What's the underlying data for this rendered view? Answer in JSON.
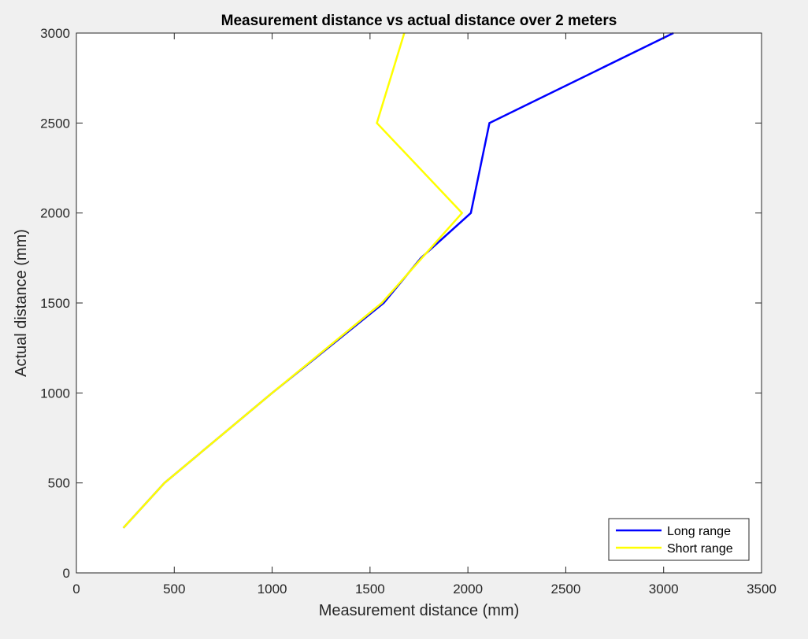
{
  "chart_data": {
    "type": "line",
    "title": "Measurement distance vs actual distance over 2 meters",
    "xlabel": "Measurement distance (mm)",
    "ylabel": "Actual distance (mm)",
    "xlim": [
      0,
      3500
    ],
    "ylim": [
      0,
      3000
    ],
    "xticks": [
      0,
      500,
      1000,
      1500,
      2000,
      2500,
      3000,
      3500
    ],
    "yticks": [
      0,
      500,
      1000,
      1500,
      2000,
      2500,
      3000
    ],
    "grid": false,
    "legend_position": "bottom-right",
    "series": [
      {
        "name": "Long range",
        "color": "#0000ff",
        "points": [
          [
            240,
            250
          ],
          [
            450,
            500
          ],
          [
            1000,
            1000
          ],
          [
            1570,
            1500
          ],
          [
            1760,
            1750
          ],
          [
            2015,
            2000
          ],
          [
            2110,
            2500
          ],
          [
            3050,
            3000
          ]
        ]
      },
      {
        "name": "Short range",
        "color": "#ffff00",
        "points": [
          [
            240,
            250
          ],
          [
            450,
            500
          ],
          [
            1000,
            1000
          ],
          [
            1560,
            1500
          ],
          [
            1970,
            2000
          ],
          [
            1535,
            2500
          ],
          [
            1675,
            3000
          ]
        ]
      }
    ]
  }
}
